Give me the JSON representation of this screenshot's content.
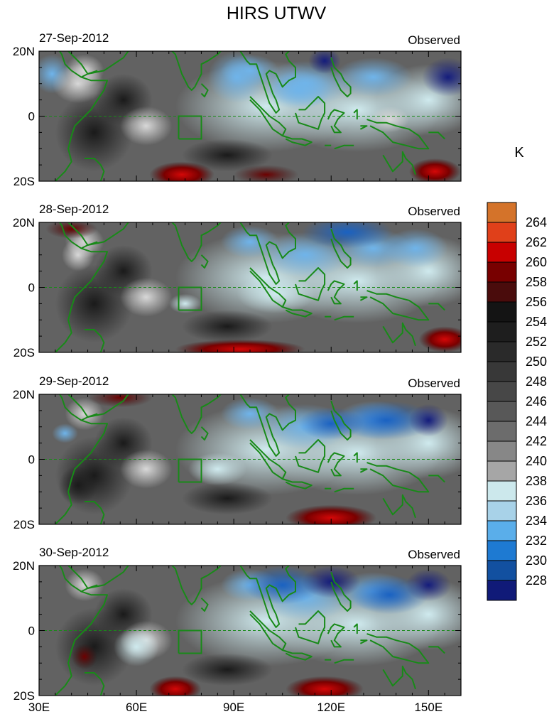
{
  "title": "HIRS UTWV",
  "units": "K",
  "panels": [
    {
      "date": "27-Sep-2012",
      "tag": "Observed"
    },
    {
      "date": "28-Sep-2012",
      "tag": "Observed"
    },
    {
      "date": "29-Sep-2012",
      "tag": "Observed"
    },
    {
      "date": "30-Sep-2012",
      "tag": "Observed"
    }
  ],
  "lat_ticks": [
    "20N",
    "0",
    "20S"
  ],
  "lon_ticks": [
    "30E",
    "60E",
    "90E",
    "120E",
    "150E"
  ],
  "colorbar": {
    "levels": [
      "264",
      "262",
      "260",
      "258",
      "256",
      "254",
      "252",
      "250",
      "248",
      "246",
      "244",
      "242",
      "240",
      "238",
      "236",
      "234",
      "232",
      "230",
      "228"
    ],
    "colors": [
      "#d4732a",
      "#e0401a",
      "#c80000",
      "#780000",
      "#4a0c0c",
      "#141414",
      "#1e1e1e",
      "#2a2a2a",
      "#383838",
      "#474747",
      "#585858",
      "#6c6c6c",
      "#878787",
      "#a6a6a6",
      "#cce8ec",
      "#a8d2e8",
      "#5aaeea",
      "#1e7ad2",
      "#1250a0",
      "#101a78"
    ]
  },
  "colors": {
    "coastline": "#188a18",
    "box": "#188a18"
  }
}
